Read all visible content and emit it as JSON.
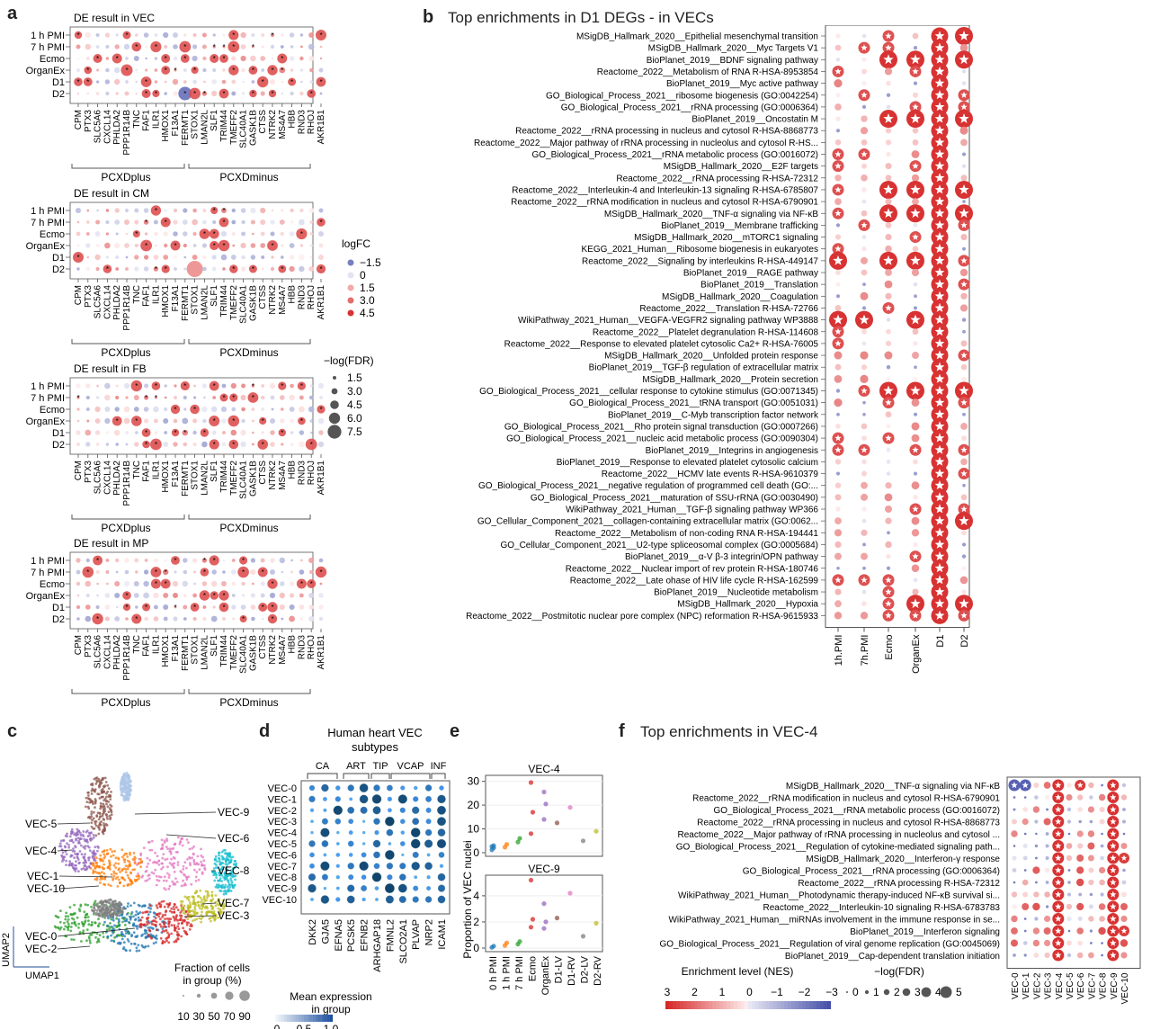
{
  "panels": {
    "a": "a",
    "b": "b",
    "c": "c",
    "d": "d",
    "e": "e",
    "f": "f"
  },
  "panel_a": {
    "row_labels": [
      "1 h PMI",
      "7 h PMI",
      "Ecmo",
      "OrganEx",
      "D1",
      "D2"
    ],
    "genes": [
      "CPM",
      "PTX3",
      "SLC5A6",
      "CXCL14",
      "PHLDA2",
      "PPP1R14B",
      "TNC",
      "FAF1",
      "ILR1",
      "HMOX1",
      "F13A1",
      "FERMT1",
      "STOX1",
      "LMAN2L",
      "SLF1",
      "TRIM44",
      "TMEFF2",
      "SLC40A1",
      "GASK1B",
      "CTSS",
      "NTRK2",
      "MS4A7",
      "HBB",
      "RND3",
      "RHOJ",
      "AKR1B1"
    ],
    "group_left": "PCXDplus",
    "group_right": "PCXDminus",
    "subplots": [
      {
        "title": "DE result in VEC"
      },
      {
        "title": "DE result in CM"
      },
      {
        "title": "DE result in FB"
      },
      {
        "title": "DE result in MP"
      }
    ],
    "legend": {
      "logfc_title": "logFC",
      "logfc_values": [
        "−1.5",
        "0",
        "1.5",
        "3.0",
        "4.5"
      ],
      "fdr_title": "−log(FDR)",
      "fdr_values": [
        "1.5",
        "3.0",
        "4.5",
        "6.0",
        "7.5"
      ]
    }
  },
  "panel_b": {
    "title": "Top enrichments in D1 DEGs - in VECs",
    "columns": [
      "1h.PMI",
      "7h.PMI",
      "Ecmo",
      "OrganEx",
      "D1",
      "D2"
    ],
    "terms": [
      "MSigDB_Hallmark_2020__Epithelial mesenchymal transition",
      "MSigDB_Hallmark_2020__Myc Targets V1",
      "BioPlanet_2019__BDNF signaling pathway",
      "Reactome_2022__Metabolism of RNA R-HSA-8953854",
      "BioPlanet_2019__Myc active pathway",
      "GO_Biological_Process_2021__ribosome biogenesis (GO:0042254)",
      "GO_Biological_Process_2021__rRNA processing (GO:0006364)",
      "BioPlanet_2019__Oncostatin M",
      "Reactome_2022__rRNA processing in nucleus and cytosol R-HSA-8868773",
      "Reactome_2022__Major pathway of rRNA processing in nucleolus and cytosol R-HS...",
      "GO_Biological_Process_2021__rRNA metabolic process (GO:0016072)",
      "MSigDB_Hallmark_2020__E2F targets",
      "Reactome_2022__rRNA processing R-HSA-72312",
      "Reactome_2022__Interleukin-4 and Interleukin-13 signaling R-HSA-6785807",
      "Reactome_2022__rRNA modification in nucleus and cytosol R-HSA-6790901",
      "MSigDB_Hallmark_2020__TNF-α signaling via NF-κB",
      "BioPlanet_2019__Membrane trafficking",
      "MSigDB_Hallmark_2020__mTORC1 signaling",
      "KEGG_2021_Human__Ribosome biogenesis in eukaryotes",
      "Reactome_2022__Signaling by interleukins R-HSA-449147",
      "BioPlanet_2019__RAGE pathway",
      "BioPlanet_2019__Translation",
      "MSigDB_Hallmark_2020__Coagulation",
      "Reactome_2022__Translation R-HSA-72766",
      "WikiPathway_2021_Human__VEGFA-VEGFR2 signaling pathway WP3888",
      "Reactome_2022__Platelet degranulation R-HSA-114608",
      "Reactome_2022__Response to elevated platelet cytosolic Ca2+ R-HSA-76005",
      "MSigDB_Hallmark_2020__Unfolded protein response",
      "BioPlanet_2019__TGF-β regulation of extracellular matrix",
      "MSigDB_Hallmark_2020__Protein secretion",
      "GO_Biological_Process_2021__cellular response to cytokine stimulus (GO:0071345)",
      "GO_Biological_Process_2021__tRNA transport (GO:0051031)",
      "BioPlanet_2019__C-Myb transcription factor network",
      "GO_Biological_Process_2021__Rho protein signal transduction (GO:0007266)",
      "GO_Biological_Process_2021__nucleic acid metabolic process (GO:0090304)",
      "BioPlanet_2019__Integrins in angiogenesis",
      "BioPlanet_2019__Response to elevated platelet cytosolic calcium",
      "Reactome_2022__HCMV late events R-HSA-9610379",
      "GO_Biological_Process_2021__negative regulation of programmed cell death (GO:...",
      "GO_Biological_Process_2021__maturation of SSU-rRNA (GO:0030490)",
      "WikiPathway_2021_Human__TGF-β signaling pathway WP366",
      "GO_Cellular_Component_2021__collagen-containing extracellular matrix (GO:0062...",
      "Reactome_2022__Metabolism of non-coding RNA R-HSA-194441",
      "GO_Cellular_Component_2021__U2-type spliceosomal complex (GO:0005684)",
      "BioPlanet_2019__α-V β-3 integrin/OPN pathway",
      "Reactome_2022__Nuclear import of rev protein R-HSA-180746",
      "Reactome_2022__Late ohase of HIV life cycle R-HSA-162599",
      "BioPlanet_2019__Nucleotide metabolism",
      "MSigDB_Hallmark_2020__Hypoxia",
      "Reactome_2022__Postmitotic nuclear pore complex (NPC) reformation R-HSA-9615933"
    ]
  },
  "panel_c": {
    "axis_x": "UMAP1",
    "axis_y": "UMAP2",
    "labels_left": [
      "VEC-5",
      "VEC-4",
      "VEC-1",
      "VEC-10",
      "VEC-0",
      "VEC-2"
    ],
    "labels_right": [
      "VEC-9",
      "VEC-6",
      "VEC-8",
      "VEC-7",
      "VEC-3"
    ],
    "fraction_title": "Fraction of cells\nin group (%)",
    "fraction_values": [
      "10",
      "30",
      "50",
      "70",
      "90"
    ],
    "mean_title": "Mean expression\nin group",
    "mean_values": [
      "0",
      "0.5",
      "1.0"
    ]
  },
  "panel_d": {
    "title": "Human heart VEC\nsubtypes",
    "groups": [
      "CA",
      "ART",
      "TIP",
      "VCAP",
      "INF"
    ],
    "rows": [
      "VEC-0",
      "VEC-1",
      "VEC-2",
      "VEC-3",
      "VEC-4",
      "VEC-5",
      "VEC-6",
      "VEC-7",
      "VEC-8",
      "VEC-9",
      "VEC-10"
    ],
    "genes": [
      "DKK2",
      "GJA5",
      "EFNA5",
      "PCSK5",
      "EFNB2",
      "ARHGAP18",
      "FMNL2",
      "SLCO2A1",
      "PLVAP",
      "NRP2",
      "ICAM1"
    ]
  },
  "panel_e": {
    "ylabel": "Proportion of VEC nuclei",
    "chart_data": [
      {
        "type": "scatter",
        "title": "VEC-4",
        "categories": [
          "0 h PMI",
          "1 h PMI",
          "7 h PMI",
          "Ecmo",
          "OrganEx",
          "D1-LV",
          "D1-RV",
          "D2-LV",
          "D2-RV"
        ],
        "yticks": [
          "0",
          "10",
          "20",
          "30"
        ],
        "ylim": [
          0,
          31
        ],
        "points": [
          {
            "cat": "0 h PMI",
            "values": [
              1.2,
              2.0,
              2.6,
              3.0
            ]
          },
          {
            "cat": "1 h PMI",
            "values": [
              2.3,
              3.5
            ]
          },
          {
            "cat": "7 h PMI",
            "values": [
              4.5,
              6.0
            ]
          },
          {
            "cat": "Ecmo",
            "values": [
              8,
              17,
              29.5
            ]
          },
          {
            "cat": "OrganEx",
            "values": [
              14,
              20.5,
              25.5
            ]
          },
          {
            "cat": "D1-LV",
            "values": [
              12.5
            ]
          },
          {
            "cat": "D1-RV",
            "values": [
              19
            ]
          },
          {
            "cat": "D2-LV",
            "values": [
              5
            ]
          },
          {
            "cat": "D2-RV",
            "values": [
              9
            ]
          }
        ]
      },
      {
        "type": "scatter",
        "title": "VEC-9",
        "categories": [
          "0 h PMI",
          "1 h PMI",
          "7 h PMI",
          "Ecmo",
          "OrganEx",
          "D1-LV",
          "D1-RV",
          "D2-LV",
          "D2-RV"
        ],
        "yticks": [
          "0",
          "2",
          "4"
        ],
        "ylim": [
          0,
          5.3
        ],
        "points": [
          {
            "cat": "0 h PMI",
            "values": [
              0.05,
              0.15
            ]
          },
          {
            "cat": "1 h PMI",
            "values": [
              0.2,
              0.4
            ]
          },
          {
            "cat": "7 h PMI",
            "values": [
              0.3,
              0.5
            ]
          },
          {
            "cat": "Ecmo",
            "values": [
              1.6,
              2.2,
              5.2
            ]
          },
          {
            "cat": "OrganEx",
            "values": [
              1.5,
              2.0,
              3.4
            ]
          },
          {
            "cat": "D1-LV",
            "values": [
              2.3
            ]
          },
          {
            "cat": "D1-RV",
            "values": [
              4.2
            ]
          },
          {
            "cat": "D2-LV",
            "values": [
              0.9
            ]
          },
          {
            "cat": "D2-RV",
            "values": [
              1.9
            ]
          }
        ]
      }
    ]
  },
  "panel_f": {
    "title": "Top enrichments in VEC-4",
    "columns": [
      "VEC-0",
      "VEC-1",
      "VEC-2",
      "VEC-3",
      "VEC-4",
      "VEC-5",
      "VEC-6",
      "VEC-7",
      "VEC-8",
      "VEC-9",
      "VEC-10"
    ],
    "terms": [
      "MSigDB_Hallmark_2020__TNF-α signaling via NF-κB",
      "Reactome_2022__rRNA modification in nucleus and cytosol R-HSA-6790901",
      "GO_Biological_Process_2021__rRNA metabolic process (GO:0016072)",
      "Reactome_2022__rRNA processing in nucleus and cytosol R-HSA-8868773",
      "Reactome_2022__Major pathway of rRNA processing in nucleolus and cytosol ...",
      "GO_Biological_Process_2021__Regulation of cytokine-mediated signaling path...",
      "MSigDB_Hallmark_2020__Interferon-γ response",
      "GO_Biological_Process_2021__rRNA processing (GO:0006364)",
      "Reactome_2022__rRNA processing R-HSA-72312",
      "WikiPathway_2021_Human__Photodynamic therapy-induced NF-κB survival si...",
      "Reactome_2022__Interleukin-10 signaling R-HSA-6783783",
      "WikiPathway_2021_Human__miRNAs involvement in the immune response in se...",
      "BioPlanet_2019__Interferon signaling",
      "GO_Biological_Process_2021__Regulation of viral genome replication (GO:0045069)",
      "BioPlanet_2019__Cap-dependent translation initiation"
    ],
    "nes_title": "Enrichment level (NES)",
    "nes_values": [
      "3",
      "2",
      "1",
      "0",
      "−1",
      "−2",
      "−3"
    ],
    "fdr_title": "−log(FDR)",
    "fdr_values": [
      "0",
      "1",
      "2",
      "3",
      "4",
      "5"
    ]
  }
}
